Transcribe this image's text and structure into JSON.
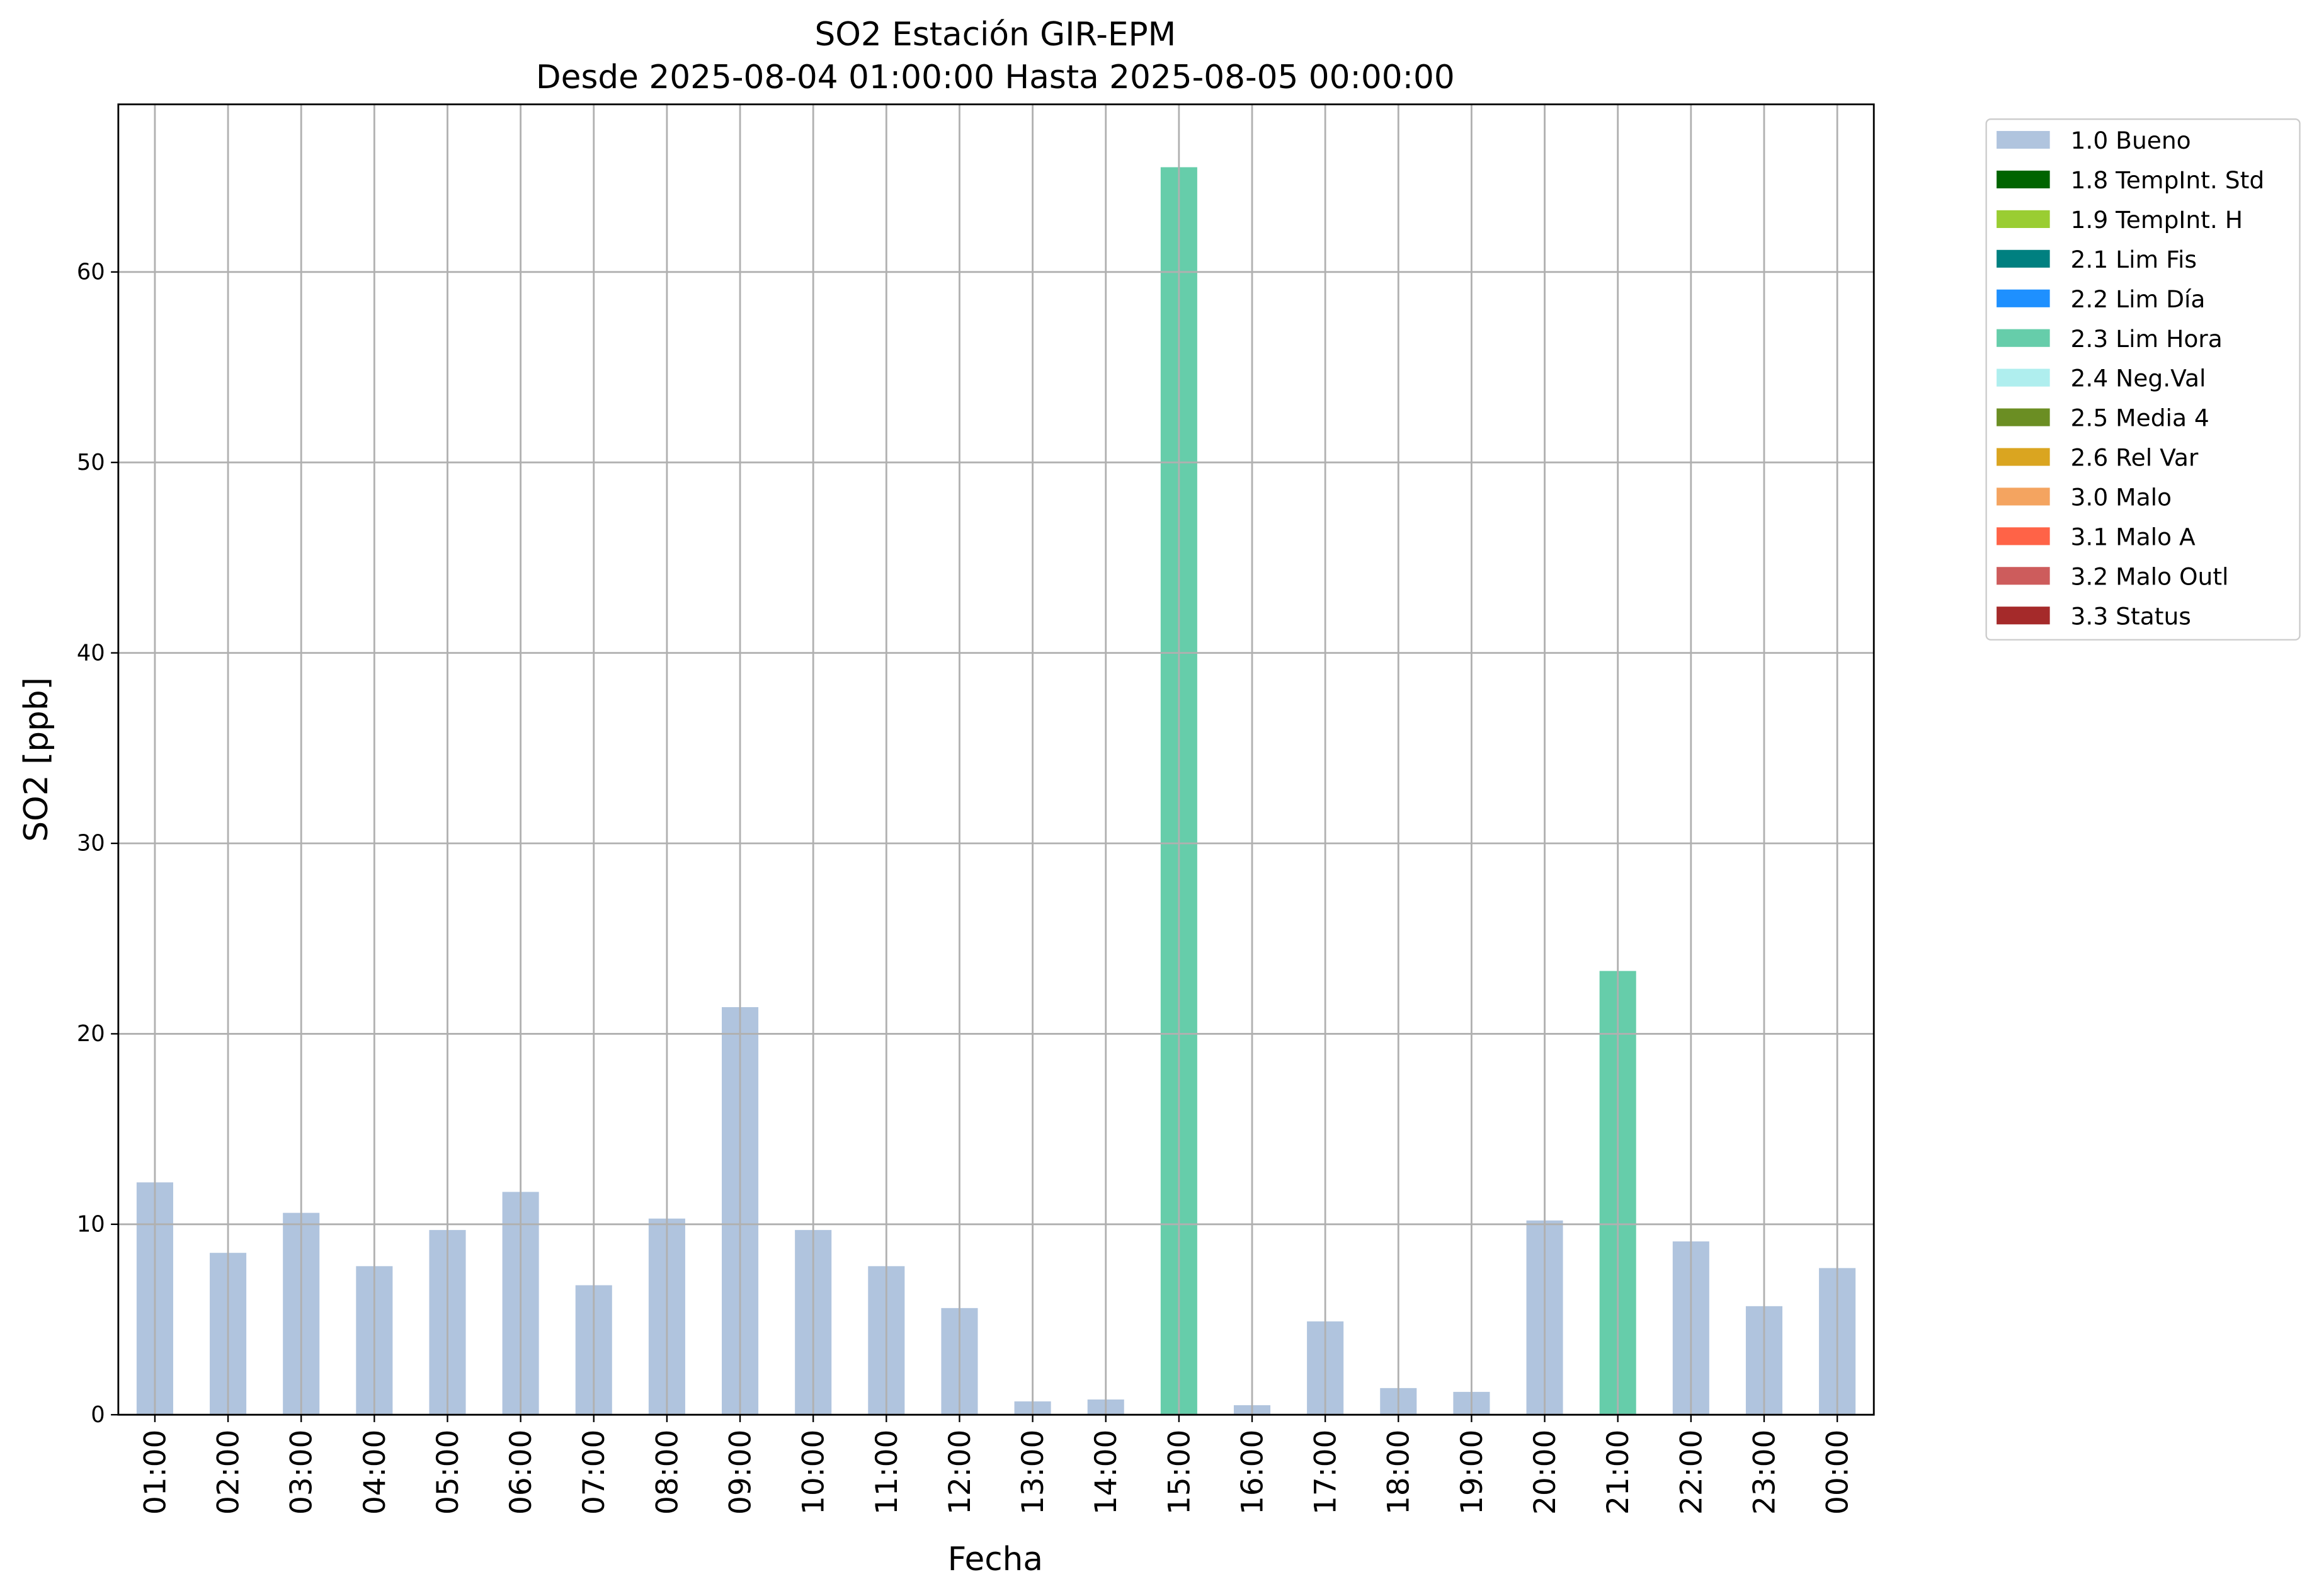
{
  "chart_data": {
    "type": "bar",
    "stacked": true,
    "title": "SO2 Estación GIR-EPM",
    "subtitle": "Desde 2025-08-04 01:00:00 Hasta 2025-08-05 00:00:00",
    "xlabel": "Fecha",
    "ylabel": "SO2 [ppb]",
    "categories": [
      "01:00",
      "02:00",
      "03:00",
      "04:00",
      "05:00",
      "06:00",
      "07:00",
      "08:00",
      "09:00",
      "10:00",
      "11:00",
      "12:00",
      "13:00",
      "14:00",
      "15:00",
      "16:00",
      "17:00",
      "18:00",
      "19:00",
      "20:00",
      "21:00",
      "22:00",
      "23:00",
      "00:00"
    ],
    "series": [
      {
        "name": "1.0 Bueno",
        "color": "#b0c4de",
        "values": [
          12.2,
          8.5,
          10.6,
          7.8,
          9.7,
          11.7,
          6.8,
          10.3,
          21.4,
          9.7,
          7.8,
          5.6,
          0.7,
          0.8,
          null,
          0.5,
          4.9,
          1.4,
          1.2,
          10.2,
          null,
          9.1,
          5.7,
          7.7
        ]
      },
      {
        "name": "1.8 TempInt. Std",
        "color": "#006400",
        "values": [
          null,
          null,
          null,
          null,
          null,
          null,
          null,
          null,
          null,
          null,
          null,
          null,
          null,
          null,
          null,
          null,
          null,
          null,
          null,
          null,
          null,
          null,
          null,
          null
        ]
      },
      {
        "name": "1.9 TempInt. H",
        "color": "#9acd32",
        "values": [
          null,
          null,
          null,
          null,
          null,
          null,
          null,
          null,
          null,
          null,
          null,
          null,
          null,
          null,
          null,
          null,
          null,
          null,
          null,
          null,
          null,
          null,
          null,
          null
        ]
      },
      {
        "name": "2.1 Lim Fis",
        "color": "#008080",
        "values": [
          null,
          null,
          null,
          null,
          null,
          null,
          null,
          null,
          null,
          null,
          null,
          null,
          null,
          null,
          null,
          null,
          null,
          null,
          null,
          null,
          null,
          null,
          null,
          null
        ]
      },
      {
        "name": "2.2 Lim Día",
        "color": "#1e90ff",
        "values": [
          null,
          null,
          null,
          null,
          null,
          null,
          null,
          null,
          null,
          null,
          null,
          null,
          null,
          null,
          null,
          null,
          null,
          null,
          null,
          null,
          null,
          null,
          null,
          null
        ]
      },
      {
        "name": "2.3 Lim Hora",
        "color": "#66cdaa",
        "values": [
          null,
          null,
          null,
          null,
          null,
          null,
          null,
          null,
          null,
          null,
          null,
          null,
          null,
          null,
          65.5,
          null,
          null,
          null,
          null,
          null,
          23.3,
          null,
          null,
          null
        ]
      },
      {
        "name": "2.4 Neg.Val",
        "color": "#afeeee",
        "values": [
          null,
          null,
          null,
          null,
          null,
          null,
          null,
          null,
          null,
          null,
          null,
          null,
          null,
          null,
          null,
          null,
          null,
          null,
          null,
          null,
          null,
          null,
          null,
          null
        ]
      },
      {
        "name": "2.5 Media 4",
        "color": "#6b8e23",
        "values": [
          null,
          null,
          null,
          null,
          null,
          null,
          null,
          null,
          null,
          null,
          null,
          null,
          null,
          null,
          null,
          null,
          null,
          null,
          null,
          null,
          null,
          null,
          null,
          null
        ]
      },
      {
        "name": "2.6 Rel Var",
        "color": "#daa520",
        "values": [
          null,
          null,
          null,
          null,
          null,
          null,
          null,
          null,
          null,
          null,
          null,
          null,
          null,
          null,
          null,
          null,
          null,
          null,
          null,
          null,
          null,
          null,
          null,
          null
        ]
      },
      {
        "name": "3.0 Malo",
        "color": "#f4a460",
        "values": [
          null,
          null,
          null,
          null,
          null,
          null,
          null,
          null,
          null,
          null,
          null,
          null,
          null,
          null,
          null,
          null,
          null,
          null,
          null,
          null,
          null,
          null,
          null,
          null
        ]
      },
      {
        "name": "3.1 Malo A",
        "color": "#ff6347",
        "values": [
          null,
          null,
          null,
          null,
          null,
          null,
          null,
          null,
          null,
          null,
          null,
          null,
          null,
          null,
          null,
          null,
          null,
          null,
          null,
          null,
          null,
          null,
          null,
          null
        ]
      },
      {
        "name": "3.2 Malo Outl",
        "color": "#cd5c5c",
        "values": [
          null,
          null,
          null,
          null,
          null,
          null,
          null,
          null,
          null,
          null,
          null,
          null,
          null,
          null,
          null,
          null,
          null,
          null,
          null,
          null,
          null,
          null,
          null,
          null
        ]
      },
      {
        "name": "3.3 Status",
        "color": "#a52a2a",
        "values": [
          null,
          null,
          null,
          null,
          null,
          null,
          null,
          null,
          null,
          null,
          null,
          null,
          null,
          null,
          null,
          null,
          null,
          null,
          null,
          null,
          null,
          null,
          null,
          null
        ]
      }
    ],
    "ylim": [
      0,
      68.8
    ],
    "yticks": [
      0,
      10,
      20,
      30,
      40,
      50,
      60
    ],
    "grid": true,
    "legend": "outside upper right"
  }
}
